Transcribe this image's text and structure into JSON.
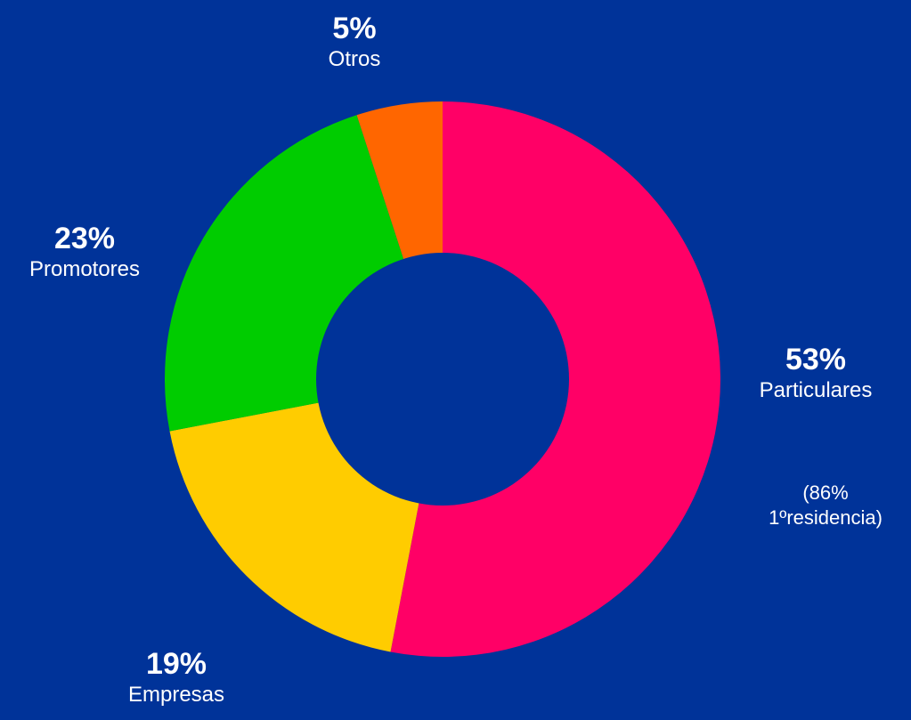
{
  "background_color": "#003399",
  "chart_data": {
    "type": "pie",
    "variant": "donut",
    "start_angle_deg": 0,
    "direction": "clockwise",
    "slices": [
      {
        "key": "particulares",
        "label": "Particulares",
        "value": 53,
        "value_label": "53%",
        "note_lines": [
          "(86%",
          "1ºresidencia)"
        ],
        "color": "#FF0066"
      },
      {
        "key": "empresas",
        "label": "Empresas",
        "value": 19,
        "value_label": "19%",
        "color": "#FFCC00"
      },
      {
        "key": "promotores",
        "label": "Promotores",
        "value": 23,
        "value_label": "23%",
        "color": "#00CC00"
      },
      {
        "key": "otros",
        "label": "Otros",
        "value": 5,
        "value_label": "5%",
        "color": "#FF6600"
      }
    ]
  }
}
